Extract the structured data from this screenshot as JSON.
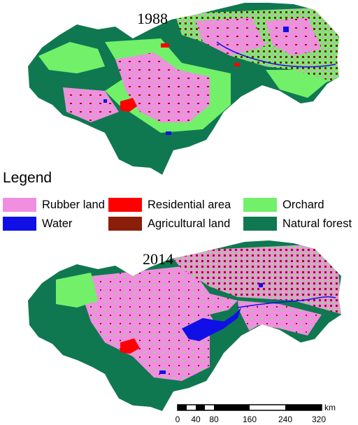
{
  "maps": [
    {
      "year": "1988"
    },
    {
      "year": "2014"
    }
  ],
  "legend": {
    "title": "Legend",
    "items": [
      {
        "label": "Rubber land",
        "color": "#f08ee0"
      },
      {
        "label": "Residential area",
        "color": "#ff0000"
      },
      {
        "label": "Orchard",
        "color": "#72f06a"
      },
      {
        "label": "Water",
        "color": "#1010e6"
      },
      {
        "label": "Agricultural land",
        "color": "#8a1e0a"
      },
      {
        "label": "Natural forest",
        "color": "#0f7850"
      }
    ]
  },
  "scalebar": {
    "unit": "km",
    "ticks": [
      "0",
      "40",
      "80",
      "160",
      "240",
      "320"
    ]
  }
}
